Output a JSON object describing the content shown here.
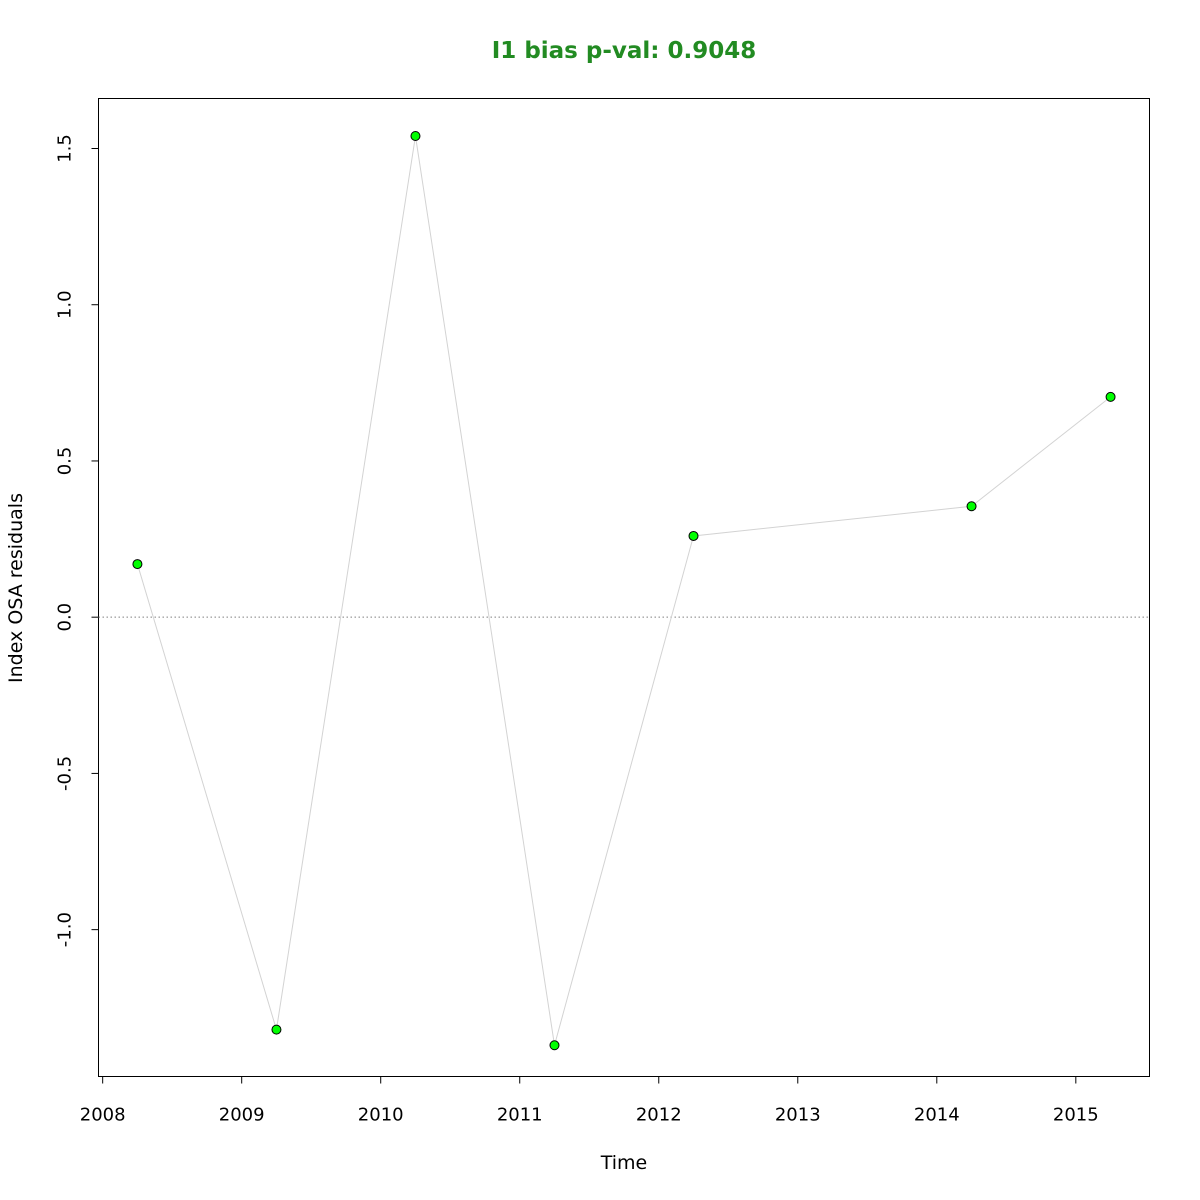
{
  "chart_data": {
    "type": "scatter",
    "title": "I1 bias p-val: 0.9048",
    "xlabel": "Time",
    "ylabel": "Index OSA residuals",
    "xlim": [
      2007.97,
      2015.53
    ],
    "ylim": [
      -1.47,
      1.66
    ],
    "x_ticks": [
      2008,
      2009,
      2010,
      2011,
      2012,
      2013,
      2014,
      2015
    ],
    "x_tick_labels": [
      "2008",
      "2009",
      "2010",
      "2011",
      "2012",
      "2013",
      "2014",
      "2015"
    ],
    "y_ticks": [
      -1.0,
      -0.5,
      0.0,
      0.5,
      1.0,
      1.5
    ],
    "y_tick_labels": [
      "-1.0",
      "-0.5",
      "0.0",
      "0.5",
      "1.0",
      "1.5"
    ],
    "reference_line": 0,
    "grid": false,
    "series": [
      {
        "x": [
          2008.25,
          2009.25,
          2010.25,
          2011.25,
          2012.25,
          2014.25,
          2015.25
        ],
        "y": [
          0.17,
          -1.32,
          1.54,
          -1.37,
          0.26,
          0.355,
          0.705
        ]
      }
    ],
    "colors": {
      "title": "#228B22",
      "point_fill": "#00ff00",
      "point_stroke": "#000000",
      "line": "#d3d3d3",
      "reference": "#808080"
    }
  }
}
